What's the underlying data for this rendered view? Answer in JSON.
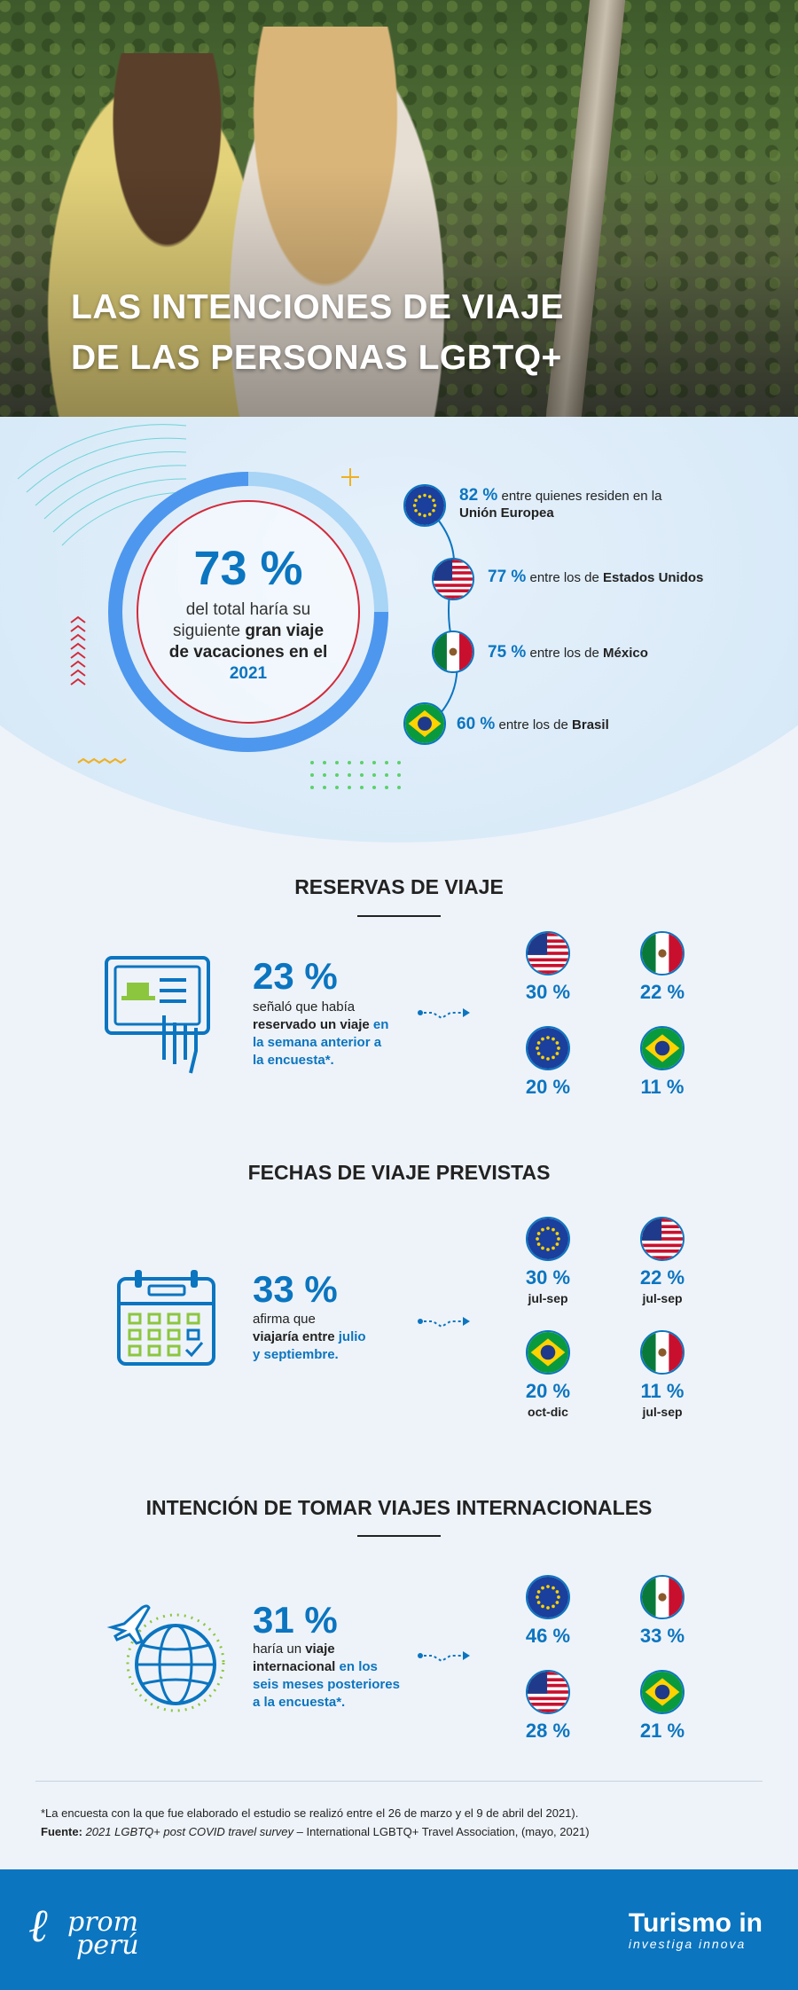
{
  "hero": {
    "title_line1": "LAS INTENCIONES DE VIAJE",
    "title_line2": "DE LAS PERSONAS LGBTQ+"
  },
  "overview": {
    "pct": "73 %",
    "desc_1": "del total haría su",
    "desc_2_plain": "siguiente",
    "desc_2_bold": "gran viaje",
    "desc_3": "de vacaciones en el",
    "desc_4": "2021",
    "regions": [
      {
        "pct": "82 %",
        "text": "entre quienes residen en la",
        "bold": "Unión Europea",
        "flag": "eu-flag"
      },
      {
        "pct": "77 %",
        "text": "entre los de",
        "bold": "Estados Unidos",
        "flag": "us-flag"
      },
      {
        "pct": "75 %",
        "text": "entre los de",
        "bold": "México",
        "flag": "mexico-flag"
      },
      {
        "pct": "60 %",
        "text": "entre los de",
        "bold": "Brasil",
        "flag": "brazil-flag"
      }
    ]
  },
  "reservas": {
    "title": "RESERVAS DE VIAJE",
    "pct": "23 %",
    "t1": "señaló que había",
    "t2_bold": "reservado un viaje",
    "t2_blue": "en",
    "t3_blue": "la semana anterior a",
    "t4_blue": "la encuesta*.",
    "countries": [
      {
        "flag": "us-flag",
        "pct": "30 %"
      },
      {
        "flag": "mexico-flag",
        "pct": "22 %"
      },
      {
        "flag": "eu-flag",
        "pct": "20 %"
      },
      {
        "flag": "brazil-flag",
        "pct": "11 %"
      }
    ]
  },
  "fechas": {
    "title": "FECHAS DE VIAJE PREVISTAS",
    "pct": "33 %",
    "t1": "afirma que",
    "t2_bold": "viajaría entre",
    "t2_blue": "julio",
    "t3_blue": "y septiembre.",
    "countries": [
      {
        "flag": "eu-flag",
        "pct": "30 %",
        "date": "jul-sep"
      },
      {
        "flag": "us-flag",
        "pct": "22 %",
        "date": "jul-sep"
      },
      {
        "flag": "brazil-flag",
        "pct": "20 %",
        "date": "oct-dic"
      },
      {
        "flag": "mexico-flag",
        "pct": "11 %",
        "date": "jul-sep"
      }
    ]
  },
  "internacional": {
    "title": "INTENCIÓN DE TOMAR VIAJES INTERNACIONALES",
    "pct": "31 %",
    "t1_plain": "haría un",
    "t1_bold": "viaje",
    "t2_bold": "internacional",
    "t2_blue": "en los",
    "t3_blue": "seis meses posteriores",
    "t4_blue": "a la encuesta*.",
    "countries": [
      {
        "flag": "eu-flag",
        "pct": "46 %"
      },
      {
        "flag": "mexico-flag",
        "pct": "33 %"
      },
      {
        "flag": "us-flag",
        "pct": "28 %"
      },
      {
        "flag": "brazil-flag",
        "pct": "21 %"
      }
    ]
  },
  "footnote": {
    "line1": "*La encuesta con la que fue elaborado el estudio se realizó entre el 26 de marzo y el 9 de abril del 2021).",
    "source_label": "Fuente:",
    "source_title": "2021 LGBTQ+ post COVID travel survey",
    "source_rest": "– International LGBTQ+ Travel Association, (mayo, 2021)"
  },
  "footer": {
    "logo_left_1": "prom",
    "logo_left_2": "perú",
    "logo_right_main": "Turismo in",
    "logo_right_sub": "investiga innova"
  },
  "colors": {
    "accent": "#0b75c0",
    "ring_light": "#a8d4f5",
    "ring_dark": "#4d97ee",
    "inner_ring": "#d32a3a"
  }
}
